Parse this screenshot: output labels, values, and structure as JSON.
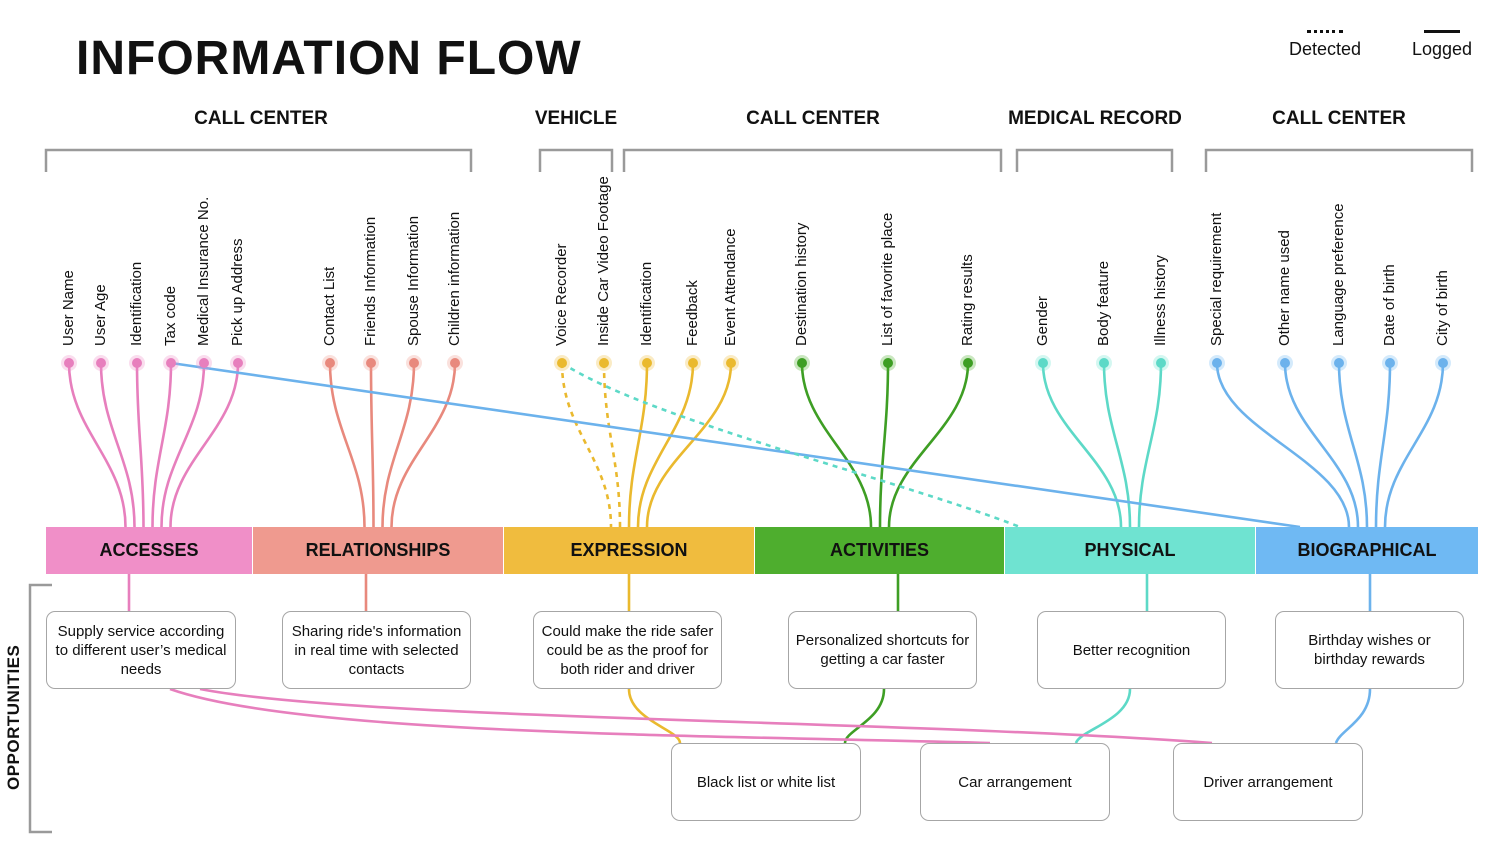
{
  "title": "INFORMATION FLOW",
  "legend": {
    "detected": "Detected",
    "logged": "Logged"
  },
  "sources": [
    {
      "label": "CALL CENTER"
    },
    {
      "label": "VEHICLE"
    },
    {
      "label": "CALL CENTER"
    },
    {
      "label": "MEDICAL RECORD"
    },
    {
      "label": "CALL CENTER"
    }
  ],
  "fields": [
    {
      "label": "User Name",
      "category": "accesses"
    },
    {
      "label": "User Age",
      "category": "accesses"
    },
    {
      "label": "Identification",
      "category": "accesses"
    },
    {
      "label": "Tax code",
      "category": "accesses"
    },
    {
      "label": "Medical Insurance No.",
      "category": "accesses"
    },
    {
      "label": "Pick up Address",
      "category": "accesses"
    },
    {
      "label": "Contact List",
      "category": "relationships"
    },
    {
      "label": "Friends Information",
      "category": "relationships"
    },
    {
      "label": "Spouse Information",
      "category": "relationships"
    },
    {
      "label": "Children information",
      "category": "relationships"
    },
    {
      "label": "Voice Recorder",
      "category": "expression"
    },
    {
      "label": "Inside Car Video Footage",
      "category": "expression"
    },
    {
      "label": "Identification",
      "category": "expression"
    },
    {
      "label": "Feedback",
      "category": "expression"
    },
    {
      "label": "Event Attendance",
      "category": "expression"
    },
    {
      "label": "Destination history",
      "category": "activities"
    },
    {
      "label": "List of favorite place",
      "category": "activities"
    },
    {
      "label": "Rating results",
      "category": "activities"
    },
    {
      "label": "Gender",
      "category": "physical"
    },
    {
      "label": "Body feature",
      "category": "physical"
    },
    {
      "label": "Illness history",
      "category": "physical"
    },
    {
      "label": "Special requirement",
      "category": "biographical"
    },
    {
      "label": "Other name used",
      "category": "biographical"
    },
    {
      "label": "Language preference",
      "category": "biographical"
    },
    {
      "label": "Date of birth",
      "category": "biographical"
    },
    {
      "label": "City of birth",
      "category": "biographical"
    }
  ],
  "categories": [
    {
      "id": "accesses",
      "label": "ACCESSES",
      "color": "#f08fc8",
      "line": "#e77fbd"
    },
    {
      "id": "relationships",
      "label": "RELATIONSHIPS",
      "color": "#ef9a8f",
      "line": "#e8897d"
    },
    {
      "id": "expression",
      "label": "EXPRESSION",
      "color": "#f0bc3e",
      "line": "#eab92e"
    },
    {
      "id": "activities",
      "label": "ACTIVITIES",
      "color": "#4eae2e",
      "line": "#3e9e24"
    },
    {
      "id": "physical",
      "label": "PHYSICAL",
      "color": "#6fe3d1",
      "line": "#5dd9c7"
    },
    {
      "id": "biographical",
      "label": "BIOGRAPHICAL",
      "color": "#6fb9f3",
      "line": "#6cb2ec"
    }
  ],
  "opportunities_label": "OPPORTUNITIES",
  "opportunities": [
    {
      "id": "opp-accesses",
      "text": "Supply service according to different user’s medical needs"
    },
    {
      "id": "opp-relationships",
      "text": "Sharing ride's information in real time with selected contacts"
    },
    {
      "id": "opp-expression",
      "text": "Could make the ride safer could be as the proof for both rider and driver"
    },
    {
      "id": "opp-activities",
      "text": "Personalized shortcuts for getting a car faster"
    },
    {
      "id": "opp-physical",
      "text": "Better recognition"
    },
    {
      "id": "opp-biographical",
      "text": "Birthday wishes or birthday rewards"
    }
  ],
  "outcomes": [
    {
      "id": "outcome-blacklist",
      "text": "Black list or white list"
    },
    {
      "id": "outcome-car",
      "text": "Car arrangement"
    },
    {
      "id": "outcome-driver",
      "text": "Driver arrangement"
    }
  ]
}
